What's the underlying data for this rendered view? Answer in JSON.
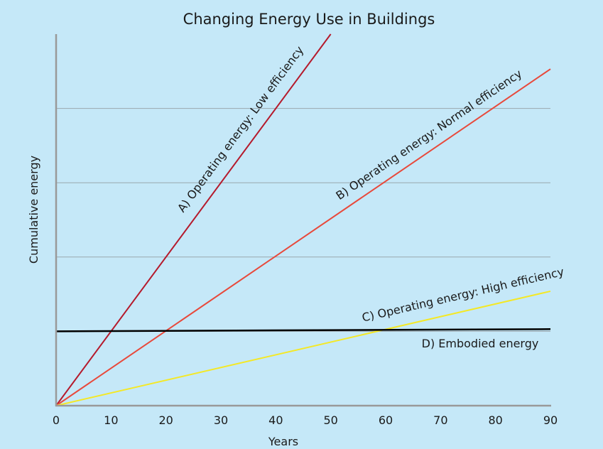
{
  "chart_data": {
    "type": "line",
    "title": "Changing Energy Use in Buildings",
    "xlabel": "Years",
    "ylabel": "Cumulative energy",
    "xlim": [
      0,
      90
    ],
    "ylim": [
      0,
      5
    ],
    "x_ticks": [
      "0",
      "10",
      "20",
      "30",
      "40",
      "50",
      "60",
      "70",
      "80",
      "90"
    ],
    "y_tick_labels_shown": false,
    "grid": "horizontal",
    "legend": "none (inline line labels)",
    "series": [
      {
        "name": "A) Operating energy: Low efficiency",
        "color": "#b51a2c",
        "x": [
          0,
          50
        ],
        "y": [
          0,
          5
        ]
      },
      {
        "name": "B) Operating energy: Normal efficiency",
        "color": "#e8493b",
        "x": [
          0,
          90
        ],
        "y": [
          0,
          4.53
        ]
      },
      {
        "name": "C) Operating energy: High efficiency",
        "color": "#f4e826",
        "x": [
          0,
          90
        ],
        "y": [
          0,
          1.54
        ]
      },
      {
        "name": "D) Embodied energy",
        "color": "#000000",
        "x": [
          0,
          90
        ],
        "y": [
          1.0,
          1.03
        ]
      }
    ]
  }
}
